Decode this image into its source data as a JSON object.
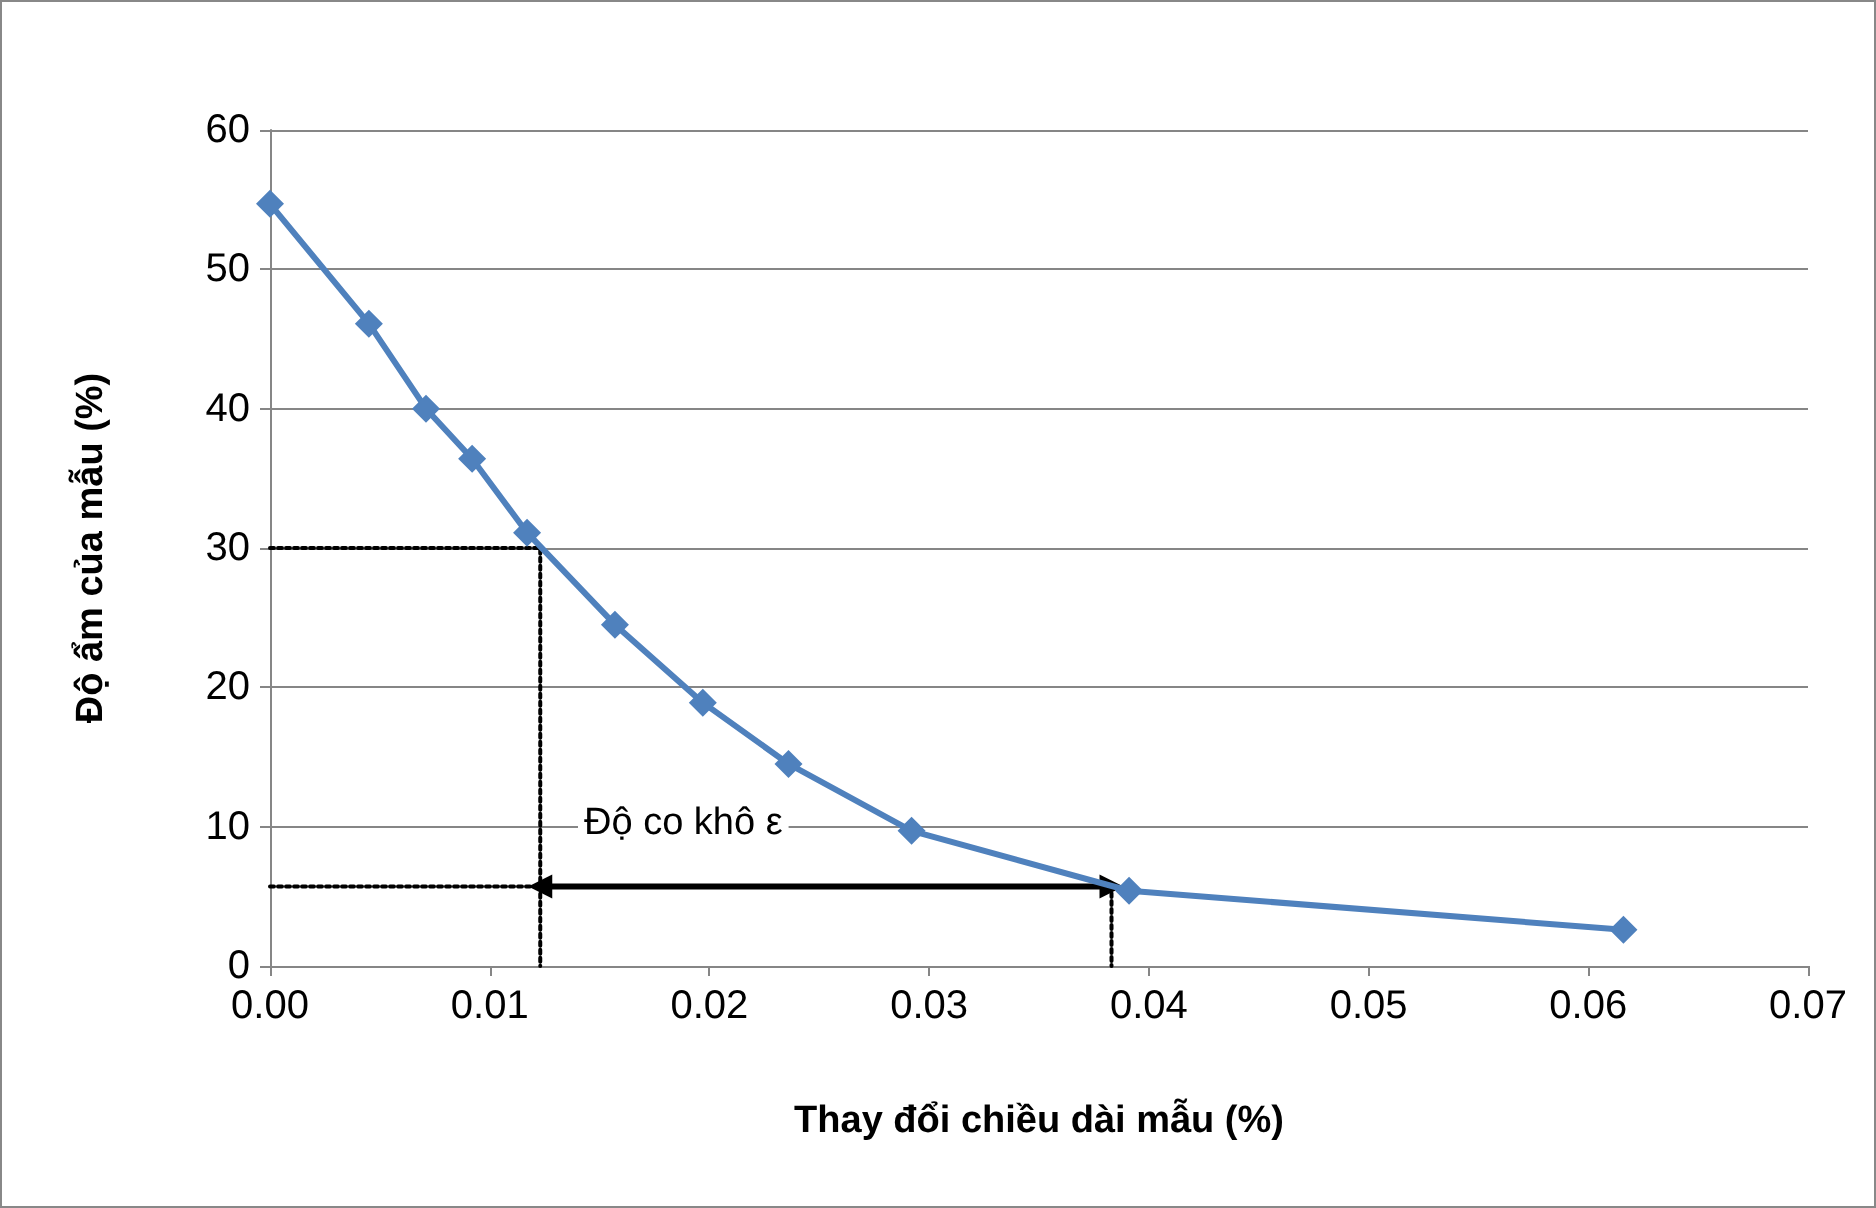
{
  "chart_data": {
    "type": "line",
    "xlabel": "Thay đổi chiều dài mẫu (%)",
    "ylabel": "Độ ẩm của mẫu (%)",
    "series": [
      {
        "color": "#4f81bd",
        "marker": "diamond",
        "line_style": "solid",
        "x": [
          0,
          0.0045,
          0.0071,
          0.0092,
          0.0117,
          0.0157,
          0.0197,
          0.0236,
          0.0292,
          0.0391,
          0.0616
        ],
        "values": [
          54.7,
          46.1,
          40.0,
          36.4,
          31.1,
          24.5,
          18.9,
          14.5,
          9.7,
          5.4,
          2.6
        ]
      },
      {
        "color": "#000000",
        "marker": "none",
        "line_style": "dotted",
        "x": [
          0,
          0.0123,
          0.0123
        ],
        "values": [
          30,
          30,
          0
        ]
      },
      {
        "color": "#000000",
        "marker": "none",
        "line_style": "dotted",
        "x": [
          0,
          0.0383,
          0.0383
        ],
        "values": [
          5.7,
          5.7,
          0
        ]
      },
      {
        "color": "#000000",
        "marker": "triangle",
        "line_style": "solid",
        "x": [
          0.0123,
          0.0383
        ],
        "values": [
          5.7,
          5.7
        ]
      }
    ],
    "annotations": [
      "Độ co khô ε"
    ],
    "xlim": [
      0,
      0.07
    ],
    "xticks": [
      {
        "value": 0,
        "label": "0.00"
      },
      {
        "value": 0.01,
        "label": "0.01"
      },
      {
        "value": 0.02,
        "label": "0.02"
      },
      {
        "value": 0.03,
        "label": "0.03"
      },
      {
        "value": 0.04,
        "label": "0.04"
      },
      {
        "value": 0.05,
        "label": "0.05"
      },
      {
        "value": 0.06,
        "label": "0.06"
      },
      {
        "value": 0.07,
        "label": "0.07"
      }
    ],
    "ylim": [
      0,
      60
    ],
    "yticks": [
      0,
      10,
      20,
      30,
      40,
      50,
      60
    ],
    "grid": "y"
  }
}
